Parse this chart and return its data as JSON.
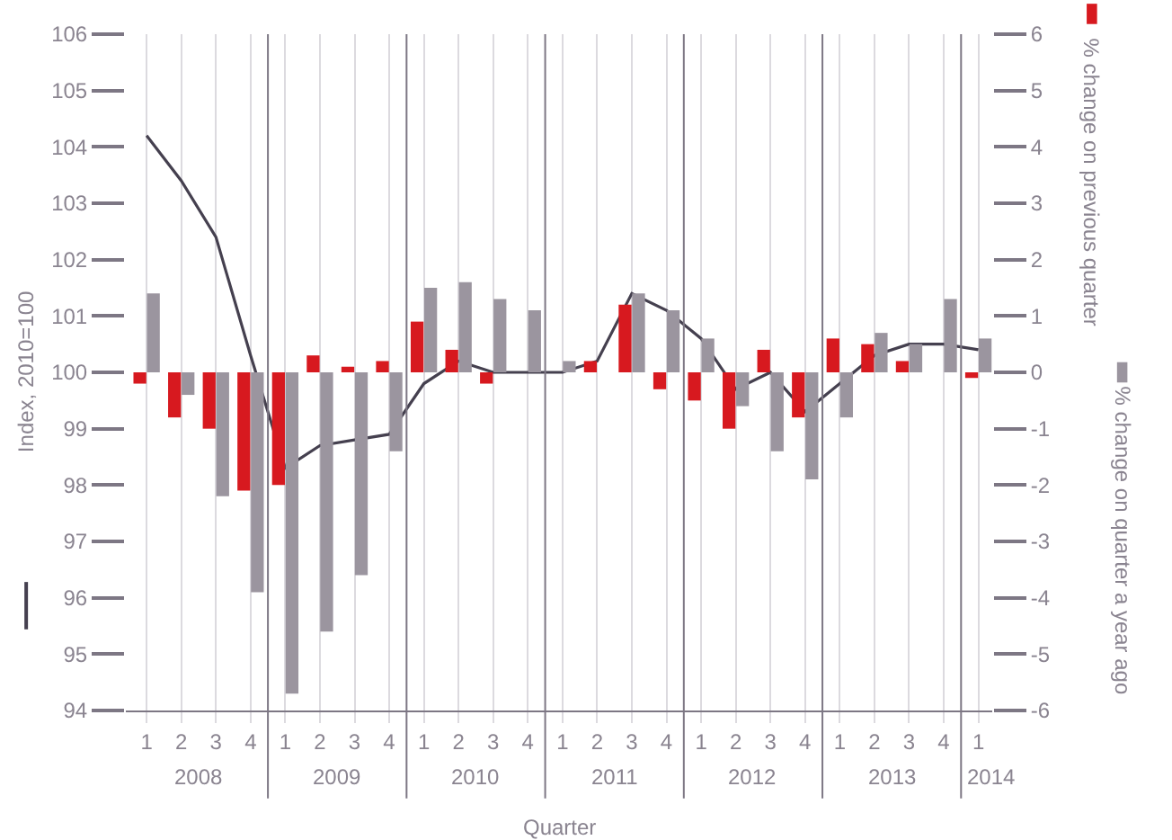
{
  "chart_data": {
    "type": "bar",
    "xlabel": "Quarter",
    "ylabel": "Index, 2010=100",
    "categories": [
      "1",
      "2",
      "3",
      "4",
      "1",
      "2",
      "3",
      "4",
      "1",
      "2",
      "3",
      "4",
      "1",
      "2",
      "3",
      "4",
      "1",
      "2",
      "3",
      "4",
      "1",
      "2",
      "3",
      "4",
      "1"
    ],
    "series": [
      {
        "name": "% change on previous quarter",
        "color": "#d7191f",
        "axis": "y2",
        "values": [
          -0.2,
          -0.8,
          -1.0,
          -2.1,
          -2.0,
          0.3,
          0.1,
          0.2,
          0.9,
          0.4,
          -0.2,
          0.0,
          0.0,
          0.2,
          1.2,
          -0.3,
          -0.5,
          -1.0,
          0.4,
          -0.8,
          0.6,
          0.5,
          0.2,
          0.0,
          -0.1
        ]
      },
      {
        "name": "% change on quarter a year ago",
        "color": "#9b959f",
        "axis": "y2",
        "values": [
          1.4,
          -0.4,
          -2.2,
          -3.9,
          -5.7,
          -4.6,
          -3.6,
          -1.4,
          1.5,
          1.6,
          1.3,
          1.1,
          0.2,
          0.0,
          1.4,
          1.1,
          0.6,
          -0.6,
          -1.4,
          -1.9,
          -0.8,
          0.7,
          0.5,
          1.3,
          0.6
        ]
      },
      {
        "type": "line",
        "color": "#45404f",
        "values": [
          104.2,
          103.4,
          102.4,
          100.3,
          98.3,
          98.7,
          98.8,
          98.9,
          99.8,
          100.2,
          100.0,
          100.0,
          100.0,
          100.2,
          101.4,
          101.1,
          100.6,
          99.7,
          100.0,
          99.3,
          99.8,
          100.3,
          100.5,
          100.5,
          100.4
        ]
      }
    ],
    "ylim": [
      94,
      106
    ],
    "yticks": [
      94,
      95,
      96,
      97,
      98,
      99,
      100,
      101,
      102,
      103,
      104,
      105,
      106
    ],
    "y2lim": [
      -6,
      6
    ],
    "y2ticks": [
      -6,
      -5,
      -4,
      -3,
      -2,
      -1,
      0,
      1,
      2,
      3,
      4,
      5,
      6
    ],
    "grid": "x",
    "legend": "right",
    "annotations": [
      "2008",
      "2009",
      "2010",
      "2011",
      "2012",
      "2013",
      "2014"
    ]
  }
}
